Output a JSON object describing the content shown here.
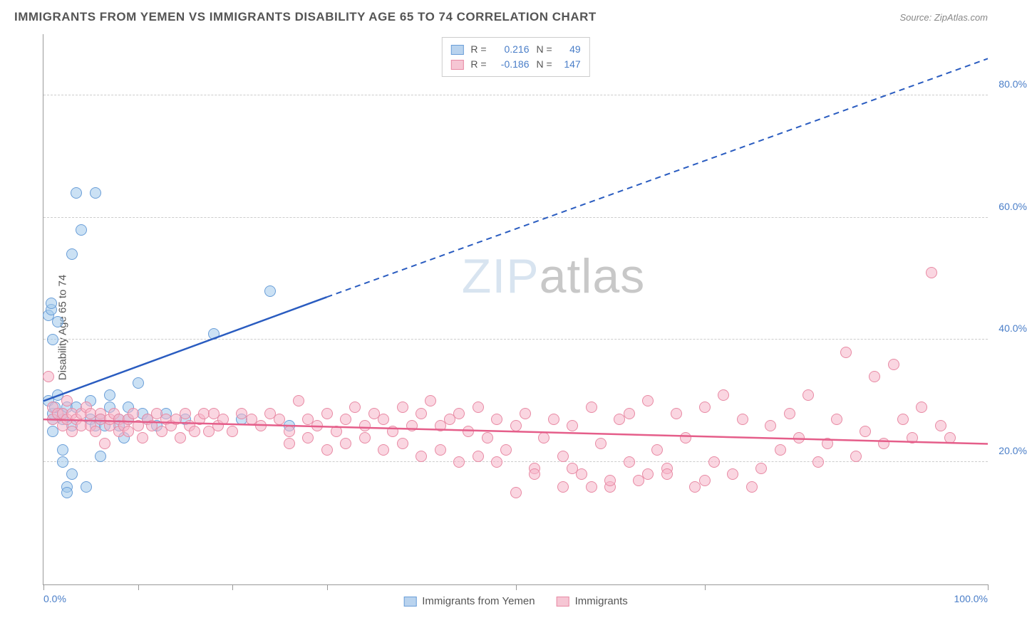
{
  "title": "IMMIGRANTS FROM YEMEN VS IMMIGRANTS DISABILITY AGE 65 TO 74 CORRELATION CHART",
  "source": "Source: ZipAtlas.com",
  "ylabel": "Disability Age 65 to 74",
  "watermark_a": "ZIP",
  "watermark_b": "atlas",
  "chart": {
    "type": "scatter",
    "xlim": [
      0,
      100
    ],
    "ylim": [
      0,
      90
    ],
    "xtick_positions": [
      0,
      10,
      20,
      30,
      50,
      70,
      100
    ],
    "xlabels": [
      {
        "x": 0,
        "text": "0.0%"
      },
      {
        "x": 100,
        "text": "100.0%"
      }
    ],
    "ygrid": [
      {
        "y": 20,
        "label": "20.0%"
      },
      {
        "y": 40,
        "label": "40.0%"
      },
      {
        "y": 60,
        "label": "60.0%"
      },
      {
        "y": 80,
        "label": "80.0%"
      }
    ],
    "legend_top": [
      {
        "swatch_fill": "#b9d3ee",
        "swatch_border": "#6a9ed8",
        "r_label": "R =",
        "r": "0.216",
        "n_label": "N =",
        "n": "49"
      },
      {
        "swatch_fill": "#f6c6d4",
        "swatch_border": "#e88aa4",
        "r_label": "R =",
        "r": "-0.186",
        "n_label": "N =",
        "n": "147"
      }
    ],
    "legend_bottom": [
      {
        "swatch_fill": "#b9d3ee",
        "swatch_border": "#6a9ed8",
        "label": "Immigrants from Yemen"
      },
      {
        "swatch_fill": "#f6c6d4",
        "swatch_border": "#e88aa4",
        "label": "Immigrants"
      }
    ],
    "series": [
      {
        "name": "yemen",
        "marker_fill": "rgba(160,200,235,0.55)",
        "marker_border": "#6a9ed8",
        "trend": {
          "color": "#2a5cc0",
          "width": 2.5,
          "x1": 0,
          "y1": 30,
          "x2": 30,
          "y2": 47,
          "dash_x2": 100,
          "dash_y2": 86
        },
        "points": [
          [
            0.5,
            30
          ],
          [
            0.5,
            44
          ],
          [
            0.8,
            45
          ],
          [
            0.8,
            46
          ],
          [
            1,
            25
          ],
          [
            1,
            27
          ],
          [
            1,
            28
          ],
          [
            1,
            40
          ],
          [
            1.2,
            29
          ],
          [
            1.5,
            31
          ],
          [
            1.5,
            43
          ],
          [
            2,
            20
          ],
          [
            2,
            22
          ],
          [
            2,
            27
          ],
          [
            2,
            28
          ],
          [
            2.5,
            16
          ],
          [
            2.5,
            15
          ],
          [
            2.5,
            29
          ],
          [
            3,
            54
          ],
          [
            3,
            18
          ],
          [
            3,
            26
          ],
          [
            3.5,
            64
          ],
          [
            3.5,
            29
          ],
          [
            4,
            58
          ],
          [
            4.5,
            16
          ],
          [
            5,
            30
          ],
          [
            5,
            27
          ],
          [
            5.5,
            26
          ],
          [
            5.5,
            64
          ],
          [
            6,
            21
          ],
          [
            6,
            27
          ],
          [
            6.5,
            26
          ],
          [
            7,
            29
          ],
          [
            7,
            31
          ],
          [
            8,
            27
          ],
          [
            8,
            26
          ],
          [
            8.5,
            24
          ],
          [
            9,
            27
          ],
          [
            9,
            29
          ],
          [
            10,
            33
          ],
          [
            10.5,
            28
          ],
          [
            11,
            27
          ],
          [
            12,
            26
          ],
          [
            13,
            28
          ],
          [
            15,
            27
          ],
          [
            18,
            41
          ],
          [
            21,
            27
          ],
          [
            24,
            48
          ],
          [
            26,
            26
          ]
        ]
      },
      {
        "name": "immigrants",
        "marker_fill": "rgba(246,180,200,0.55)",
        "marker_border": "#e88aa4",
        "trend": {
          "color": "#e55e8a",
          "width": 2.5,
          "x1": 0,
          "y1": 27,
          "x2": 100,
          "y2": 23
        },
        "points": [
          [
            0.5,
            34
          ],
          [
            1,
            27
          ],
          [
            1,
            29
          ],
          [
            1.5,
            28
          ],
          [
            2,
            28
          ],
          [
            2,
            26
          ],
          [
            2.5,
            30
          ],
          [
            2.5,
            27
          ],
          [
            3,
            28
          ],
          [
            3,
            25
          ],
          [
            3.5,
            27
          ],
          [
            4,
            28
          ],
          [
            4,
            26
          ],
          [
            4.5,
            29
          ],
          [
            5,
            28
          ],
          [
            5,
            26
          ],
          [
            5.5,
            25
          ],
          [
            6,
            28
          ],
          [
            6,
            27
          ],
          [
            6.5,
            23
          ],
          [
            7,
            26
          ],
          [
            7,
            27
          ],
          [
            7.5,
            28
          ],
          [
            8,
            25
          ],
          [
            8,
            27
          ],
          [
            8.5,
            26
          ],
          [
            9,
            27
          ],
          [
            9,
            25
          ],
          [
            9.5,
            28
          ],
          [
            10,
            26
          ],
          [
            10.5,
            24
          ],
          [
            11,
            27
          ],
          [
            11.5,
            26
          ],
          [
            12,
            28
          ],
          [
            12.5,
            25
          ],
          [
            13,
            27
          ],
          [
            13.5,
            26
          ],
          [
            14,
            27
          ],
          [
            14.5,
            24
          ],
          [
            15,
            28
          ],
          [
            15.5,
            26
          ],
          [
            16,
            25
          ],
          [
            16.5,
            27
          ],
          [
            17,
            28
          ],
          [
            17.5,
            25
          ],
          [
            18,
            28
          ],
          [
            18.5,
            26
          ],
          [
            19,
            27
          ],
          [
            20,
            25
          ],
          [
            21,
            28
          ],
          [
            22,
            27
          ],
          [
            23,
            26
          ],
          [
            24,
            28
          ],
          [
            25,
            27
          ],
          [
            26,
            25
          ],
          [
            27,
            30
          ],
          [
            28,
            27
          ],
          [
            29,
            26
          ],
          [
            30,
            28
          ],
          [
            31,
            25
          ],
          [
            32,
            27
          ],
          [
            33,
            29
          ],
          [
            34,
            26
          ],
          [
            35,
            28
          ],
          [
            36,
            27
          ],
          [
            37,
            25
          ],
          [
            38,
            29
          ],
          [
            39,
            26
          ],
          [
            40,
            28
          ],
          [
            41,
            30
          ],
          [
            42,
            26
          ],
          [
            43,
            27
          ],
          [
            44,
            28
          ],
          [
            45,
            25
          ],
          [
            46,
            29
          ],
          [
            47,
            24
          ],
          [
            48,
            27
          ],
          [
            49,
            22
          ],
          [
            50,
            26
          ],
          [
            51,
            28
          ],
          [
            52,
            19
          ],
          [
            53,
            24
          ],
          [
            54,
            27
          ],
          [
            55,
            21
          ],
          [
            56,
            26
          ],
          [
            57,
            18
          ],
          [
            58,
            29
          ],
          [
            59,
            23
          ],
          [
            60,
            16
          ],
          [
            61,
            27
          ],
          [
            62,
            28
          ],
          [
            63,
            17
          ],
          [
            64,
            30
          ],
          [
            65,
            22
          ],
          [
            66,
            19
          ],
          [
            67,
            28
          ],
          [
            68,
            24
          ],
          [
            69,
            16
          ],
          [
            70,
            29
          ],
          [
            71,
            20
          ],
          [
            72,
            31
          ],
          [
            73,
            18
          ],
          [
            74,
            27
          ],
          [
            75,
            16
          ],
          [
            76,
            19
          ],
          [
            77,
            26
          ],
          [
            78,
            22
          ],
          [
            79,
            28
          ],
          [
            80,
            24
          ],
          [
            81,
            31
          ],
          [
            82,
            20
          ],
          [
            83,
            23
          ],
          [
            84,
            27
          ],
          [
            85,
            38
          ],
          [
            86,
            21
          ],
          [
            87,
            25
          ],
          [
            88,
            34
          ],
          [
            89,
            23
          ],
          [
            90,
            36
          ],
          [
            91,
            27
          ],
          [
            92,
            24
          ],
          [
            93,
            29
          ],
          [
            94,
            51
          ],
          [
            95,
            26
          ],
          [
            96,
            24
          ],
          [
            50,
            15
          ],
          [
            55,
            16
          ],
          [
            60,
            17
          ],
          [
            48,
            20
          ],
          [
            52,
            18
          ],
          [
            56,
            19
          ],
          [
            62,
            20
          ],
          [
            66,
            18
          ],
          [
            70,
            17
          ],
          [
            58,
            16
          ],
          [
            64,
            18
          ],
          [
            42,
            22
          ],
          [
            46,
            21
          ],
          [
            44,
            20
          ],
          [
            38,
            23
          ],
          [
            36,
            22
          ],
          [
            40,
            21
          ],
          [
            34,
            24
          ],
          [
            32,
            23
          ],
          [
            30,
            22
          ],
          [
            28,
            24
          ],
          [
            26,
            23
          ]
        ]
      }
    ]
  }
}
